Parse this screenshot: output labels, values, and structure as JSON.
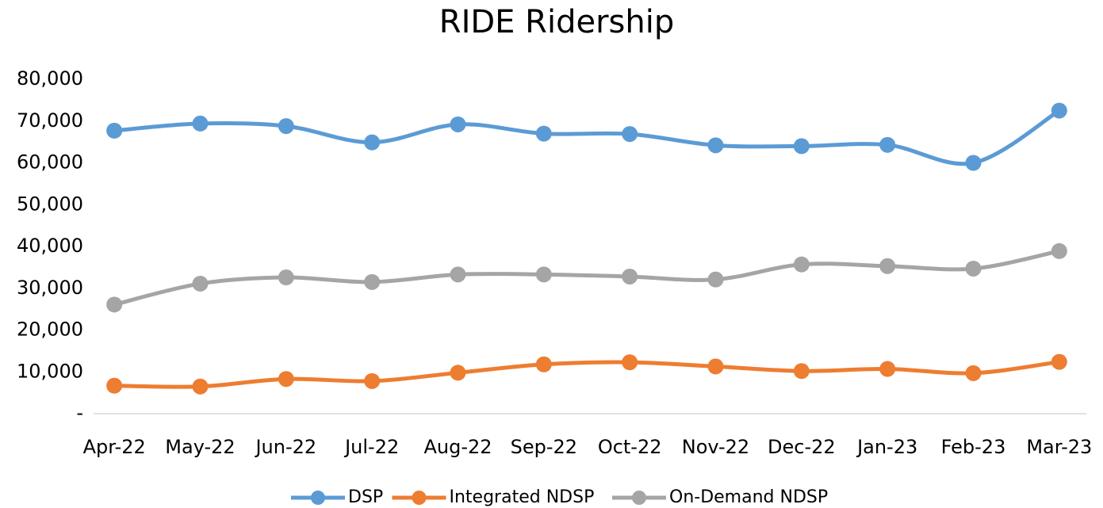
{
  "chart_data": {
    "type": "line",
    "title": "RIDE Ridership",
    "categories": [
      "Apr-22",
      "May-22",
      "Jun-22",
      "Jul-22",
      "Aug-22",
      "Sep-22",
      "Oct-22",
      "Nov-22",
      "Dec-22",
      "Jan-23",
      "Feb-23",
      "Mar-23"
    ],
    "series": [
      {
        "name": "DSP",
        "color": "#5b9bd5",
        "values": [
          67700,
          69400,
          68800,
          64900,
          69200,
          67000,
          66900,
          64200,
          64000,
          64300,
          60000,
          72500
        ]
      },
      {
        "name": "Integrated NDSP",
        "color": "#ed7d31",
        "values": [
          6700,
          6500,
          8300,
          7800,
          9800,
          11800,
          12300,
          11300,
          10200,
          10700,
          9700,
          12400
        ]
      },
      {
        "name": "On-Demand NDSP",
        "color": "#a5a5a5",
        "values": [
          26100,
          31100,
          32600,
          31500,
          33300,
          33300,
          32800,
          32100,
          35700,
          35300,
          34700,
          38900
        ]
      }
    ],
    "ylim": [
      0,
      80000
    ],
    "yticks": [
      {
        "value": 0,
        "label": "-"
      },
      {
        "value": 10000,
        "label": "10,000"
      },
      {
        "value": 20000,
        "label": "20,000"
      },
      {
        "value": 30000,
        "label": "30,000"
      },
      {
        "value": 40000,
        "label": "40,000"
      },
      {
        "value": 50000,
        "label": "50,000"
      },
      {
        "value": 60000,
        "label": "60,000"
      },
      {
        "value": 70000,
        "label": "70,000"
      },
      {
        "value": 80000,
        "label": "80,000"
      }
    ],
    "grid": false,
    "smooth": true,
    "legend": "bottom"
  }
}
